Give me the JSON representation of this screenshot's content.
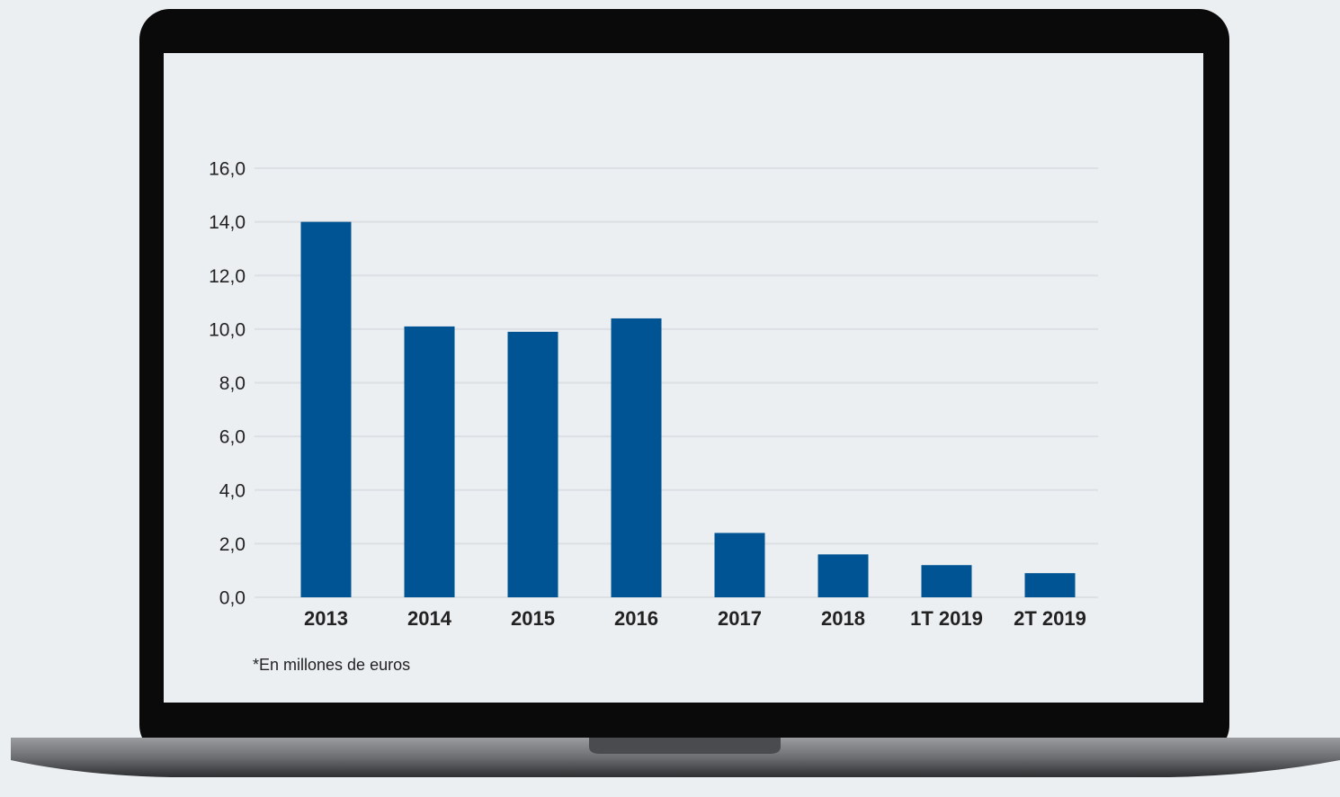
{
  "chart_data": {
    "type": "bar",
    "categories": [
      "2013",
      "2014",
      "2015",
      "2016",
      "2017",
      "2018",
      "1T 2019",
      "2T 2019"
    ],
    "values": [
      14.0,
      10.1,
      9.9,
      10.4,
      2.4,
      1.6,
      1.2,
      0.9
    ],
    "color": "#005493",
    "ylim": [
      0,
      16
    ],
    "yticks": [
      {
        "value": 0,
        "label": "0,0"
      },
      {
        "value": 2,
        "label": "2,0"
      },
      {
        "value": 4,
        "label": "4,0"
      },
      {
        "value": 6,
        "label": "6,0"
      },
      {
        "value": 8,
        "label": "8,0"
      },
      {
        "value": 10,
        "label": "10,0"
      },
      {
        "value": 12,
        "label": "12,0"
      },
      {
        "value": 14,
        "label": "14,0"
      },
      {
        "value": 16,
        "label": "16,0"
      }
    ],
    "grid": true,
    "annotation": "*En millones de euros"
  }
}
